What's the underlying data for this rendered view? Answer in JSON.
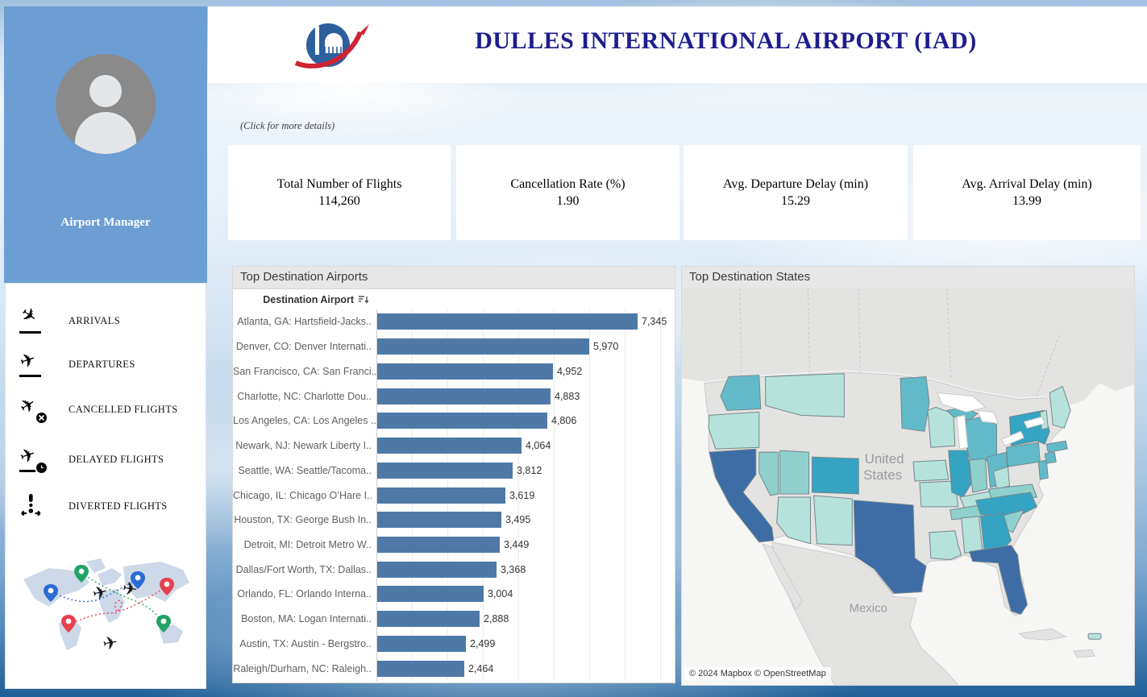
{
  "header": {
    "title": "DULLES INTERNATIONAL AIRPORT (IAD)"
  },
  "sidebar": {
    "profile_name": "Airport Manager",
    "menu": [
      {
        "icon": "plane-arrival-icon",
        "label": "ARRIVALS"
      },
      {
        "icon": "plane-departure-icon",
        "label": "DEPARTURES"
      },
      {
        "icon": "plane-cancelled-icon",
        "label": "CANCELLED FLIGHTS"
      },
      {
        "icon": "plane-delayed-icon",
        "label": "DELAYED FLIGHTS"
      },
      {
        "icon": "plane-diverted-icon",
        "label": "DIVERTED FLIGHTS"
      }
    ]
  },
  "hint": "(Click for more details)",
  "kpis": [
    {
      "label": "Total Number of Flights",
      "value": "114,260"
    },
    {
      "label": "Cancellation Rate (%)",
      "value": "1.90"
    },
    {
      "label": "Avg. Departure Delay (min)",
      "value": "15.29"
    },
    {
      "label": "Avg. Arrival Delay (min)",
      "value": "13.99"
    }
  ],
  "bar_panel": {
    "title": "Top Destination Airports",
    "column_header": "Destination Airport"
  },
  "map_panel": {
    "title": "Top Destination States",
    "country_label": "United States",
    "mexico_label": "Mexico",
    "attribution": "© 2024 Mapbox  © OpenStreetMap"
  },
  "chart_data": [
    {
      "type": "bar",
      "title": "Top Destination Airports",
      "orientation": "horizontal",
      "categories": [
        "Atlanta, GA: Hartsfield-Jacks..",
        "Denver, CO: Denver Internati..",
        "San Francisco, CA: San Franci..",
        "Charlotte, NC: Charlotte Dou..",
        "Los Angeles, CA: Los Angeles ..",
        "Newark, NJ: Newark Liberty I..",
        "Seattle, WA: Seattle/Tacoma..",
        "Chicago, IL: Chicago O’Hare I..",
        "Houston, TX: George Bush In..",
        "Detroit, MI: Detroit Metro W..",
        "Dallas/Fort Worth, TX: Dallas..",
        "Orlando, FL: Orlando Interna..",
        "Boston, MA: Logan Internati..",
        "Austin, TX: Austin - Bergstro..",
        "Raleigh/Durham, NC: Raleigh.."
      ],
      "values": [
        7345,
        5970,
        4952,
        4883,
        4806,
        4064,
        3812,
        3619,
        3495,
        3449,
        3368,
        3004,
        2888,
        2499,
        2464
      ],
      "values_display": [
        "7,345",
        "5,970",
        "4,952",
        "4,883",
        "4,806",
        "4,064",
        "3,812",
        "3,619",
        "3,495",
        "3,449",
        "3,368",
        "3,004",
        "2,888",
        "2,499",
        "2,464"
      ],
      "xlim": [
        0,
        8000
      ],
      "grid_interval": 1000,
      "bar_color": "#4e79a7"
    },
    {
      "type": "choropleth",
      "title": "Top Destination States",
      "palette": {
        "high": "#3e6da6",
        "med_high": "#35a3c2",
        "medium": "#62bac9",
        "med_low": "#8fd0cc",
        "low": "#b5e2da",
        "none": "#e3e3e2"
      },
      "states": {
        "CA": "high",
        "TX": "high",
        "FL": "high",
        "NY": "med_high",
        "CO": "med_high",
        "GA": "med_high",
        "IL": "med_high",
        "NC": "med_high",
        "WA": "medium",
        "MN": "medium",
        "MI": "medium",
        "MI_UP": "medium",
        "OH": "medium",
        "PA": "medium",
        "NJ": "medium",
        "MA": "medium",
        "CT": "medium",
        "IN": "med_low",
        "TN": "med_low",
        "VA": "med_low",
        "SC": "med_low",
        "NV": "med_low",
        "UT": "med_low",
        "OR": "low",
        "AZ": "low",
        "NM": "low",
        "MT": "low",
        "WI": "low",
        "IA": "low",
        "MO": "low",
        "KY": "low",
        "AL": "low",
        "LA": "low",
        "ME": "low",
        "VT": "low",
        "WV": "low",
        "PR": "low"
      }
    }
  ]
}
